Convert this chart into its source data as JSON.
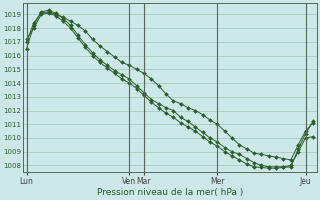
{
  "xlabel": "Pression niveau de la mer( hPa )",
  "background_color": "#cce8e8",
  "grid_color": "#99bbaa",
  "line_color": "#2a5f2a",
  "ylim": [
    1007.5,
    1019.8
  ],
  "yticks": [
    1008,
    1009,
    1010,
    1011,
    1012,
    1013,
    1014,
    1015,
    1016,
    1017,
    1018,
    1019
  ],
  "x_tick_labels": [
    "Lun",
    "Ven",
    "Mar",
    "Mer",
    "Jeu"
  ],
  "x_tick_positions": [
    0,
    14,
    16,
    26,
    38
  ],
  "vline_positions": [
    0,
    14,
    16,
    26,
    38
  ],
  "xlim": [
    -0.5,
    39.5
  ],
  "series1": [
    1017.0,
    1018.4,
    1019.1,
    1019.2,
    1019.0,
    1018.8,
    1018.5,
    1018.2,
    1017.8,
    1017.2,
    1016.7,
    1016.3,
    1015.9,
    1015.5,
    1015.3,
    1015.0,
    1014.7,
    1014.3,
    1013.8,
    1013.2,
    1012.7,
    1012.5,
    1012.2,
    1012.0,
    1011.7,
    1011.3,
    1011.0,
    1010.5,
    1010.0,
    1009.5,
    1009.2,
    1008.9,
    1008.8,
    1008.7,
    1008.6,
    1008.5,
    1008.4,
    1009.5,
    1010.5,
    1011.1
  ],
  "series2": [
    1016.5,
    1018.2,
    1019.2,
    1019.3,
    1019.1,
    1018.7,
    1018.2,
    1017.5,
    1016.8,
    1016.2,
    1015.7,
    1015.3,
    1014.9,
    1014.6,
    1014.3,
    1013.8,
    1013.3,
    1012.8,
    1012.5,
    1012.2,
    1012.0,
    1011.5,
    1011.2,
    1010.8,
    1010.4,
    1010.0,
    1009.7,
    1009.3,
    1009.0,
    1008.8,
    1008.5,
    1008.2,
    1008.0,
    1007.9,
    1007.9,
    1007.9,
    1008.0,
    1009.0,
    1010.0,
    1010.1
  ],
  "series3": [
    1017.2,
    1018.0,
    1019.0,
    1019.1,
    1018.9,
    1018.5,
    1018.0,
    1017.3,
    1016.6,
    1016.0,
    1015.5,
    1015.1,
    1014.7,
    1014.3,
    1014.0,
    1013.6,
    1013.1,
    1012.6,
    1012.2,
    1011.8,
    1011.5,
    1011.1,
    1010.8,
    1010.5,
    1010.1,
    1009.7,
    1009.4,
    1009.0,
    1008.7,
    1008.4,
    1008.1,
    1007.9,
    1007.85,
    1007.8,
    1007.8,
    1007.85,
    1007.9,
    1009.2,
    1010.3,
    1011.2
  ],
  "n_points": 40
}
